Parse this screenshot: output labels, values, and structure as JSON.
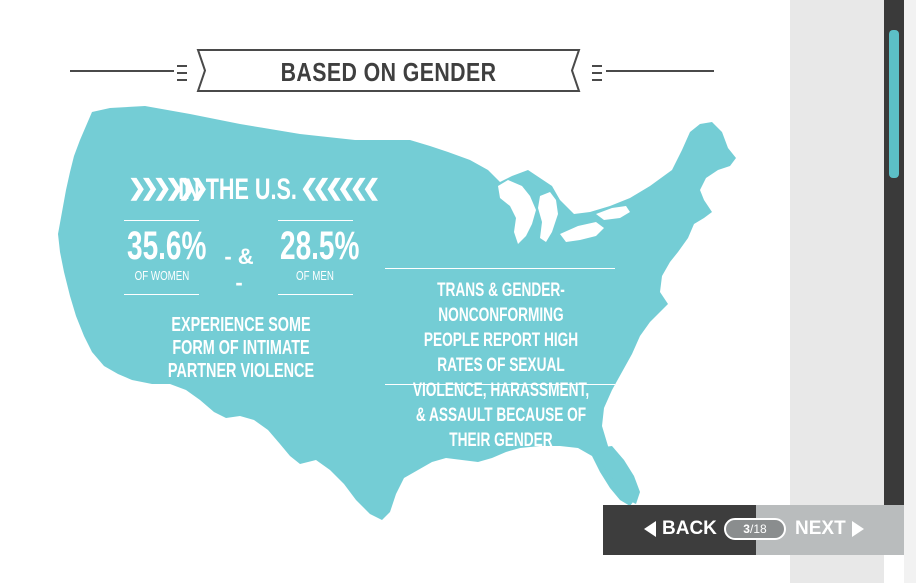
{
  "banner": {
    "title": "BASED ON GENDER"
  },
  "map_text": {
    "heading": "IN THE U.S.",
    "women_stat": "35.6%",
    "women_label": "OF WOMEN",
    "connector": "- & -",
    "men_stat": "28.5%",
    "men_label": "OF MEN",
    "ipv_text": "EXPERIENCE SOME FORM OF INTIMATE PARTNER VIOLENCE",
    "trans_text": "TRANS & GENDER-NONCONFORMING PEOPLE REPORT HIGH RATES OF SEXUAL VIOLENCE, HARASSMENT, & ASSAULT BECAUSE OF THEIR GENDER"
  },
  "nav": {
    "back_label": "BACK",
    "next_label": "NEXT",
    "current_page": "3",
    "separator": "/",
    "total_pages": "18"
  },
  "colors": {
    "map_teal": "#74cdd5",
    "text_dark": "#3f3f3f",
    "nav_dark": "#3d3d3d",
    "nav_light": "#b9bcbd",
    "scroll_thumb": "#5cbfc6"
  },
  "icons": {
    "back": "triangle-left-icon",
    "next": "triangle-right-icon"
  }
}
